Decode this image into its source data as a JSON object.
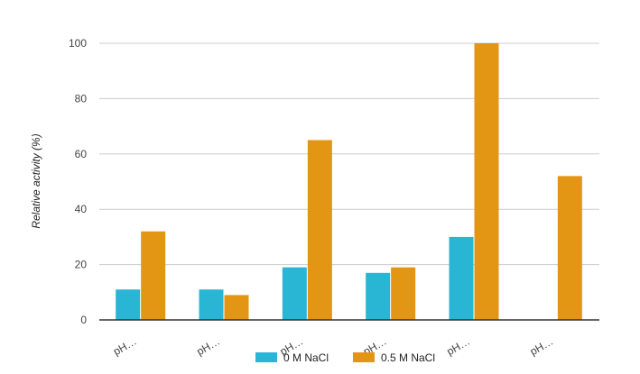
{
  "chart_data": {
    "type": "bar",
    "title": "",
    "xlabel": "",
    "ylabel": "Relative activity (%)",
    "ylim": [
      0,
      100
    ],
    "yticks": [
      0,
      20,
      40,
      60,
      80,
      100
    ],
    "grid": true,
    "legend_position": "bottom",
    "categories": [
      "pH…",
      "pH…",
      "pH…",
      "pH…",
      "pH…",
      "pH…"
    ],
    "series": [
      {
        "name": "0 M NaCl",
        "color": "#29b6d4",
        "values": [
          11,
          11,
          19,
          17,
          30,
          0
        ]
      },
      {
        "name": "0.5 M NaCl",
        "color": "#e39613",
        "values": [
          32,
          9,
          65,
          19,
          100,
          52
        ]
      }
    ]
  }
}
